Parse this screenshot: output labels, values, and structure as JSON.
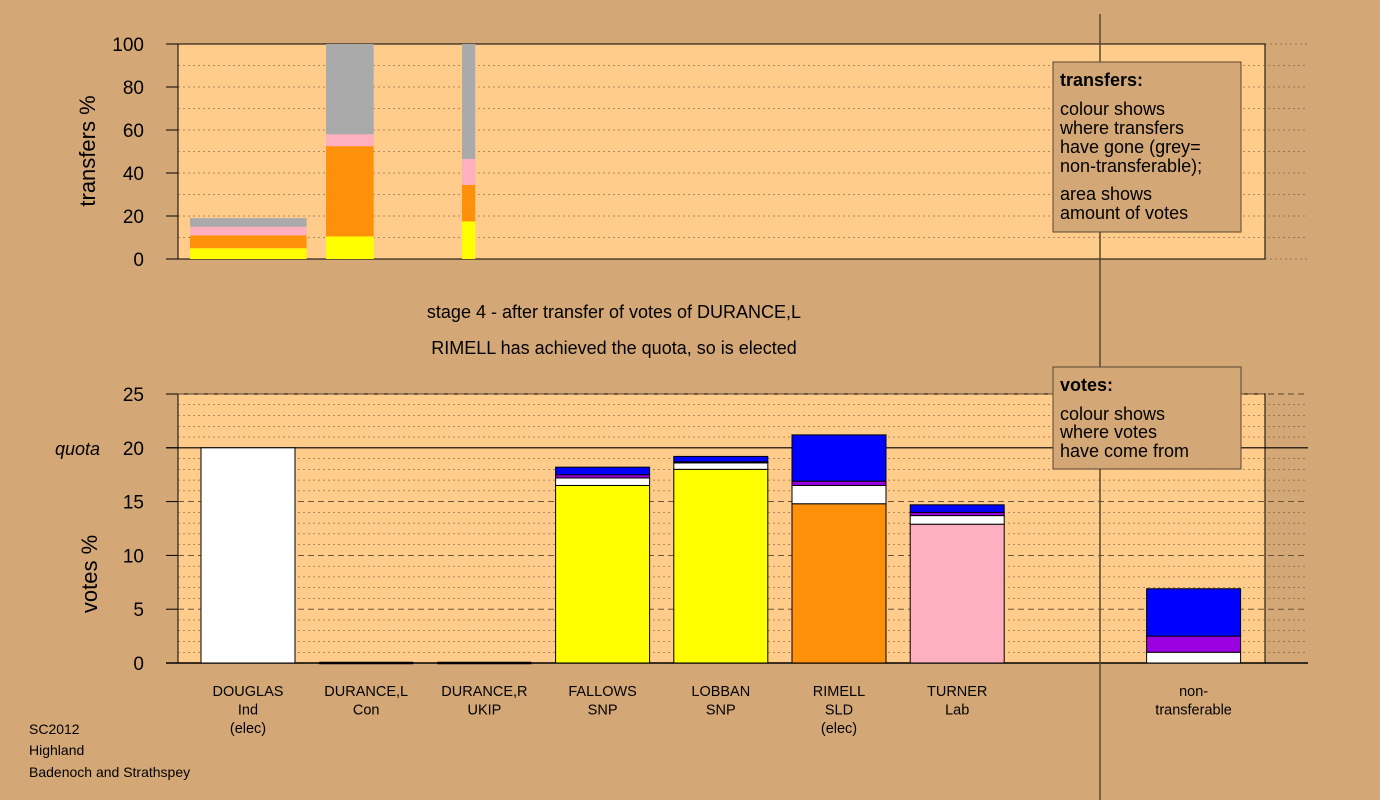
{
  "colors": {
    "background": "#d4a876",
    "plot_bg": "#ffcc8c",
    "white": "#ffffff",
    "yellow": "#ffff00",
    "orange": "#ff9009",
    "pink": "#ffb0c0",
    "grey": "#aaaaaa",
    "purple": "#9a00e0",
    "blue": "#0000ff"
  },
  "titles": {
    "stage": "stage 4 - after transfer of votes of DURANCE,L",
    "elected": "RIMELL has achieved the quota, so is elected"
  },
  "legend_transfers": {
    "title": "transfers:",
    "lines1": [
      "colour shows",
      "where transfers",
      "have gone (grey=",
      "non-transferable);"
    ],
    "lines2": [
      "area shows",
      "amount of votes"
    ]
  },
  "legend_votes": {
    "title": "votes:",
    "lines": [
      "colour shows",
      "where votes",
      "have come from"
    ]
  },
  "footer": [
    "SC2012",
    "Highland",
    "Badenoch and Strathspey"
  ],
  "chart_data": [
    {
      "type": "bar",
      "ylabel": "transfers %",
      "ylim": [
        0,
        100
      ],
      "yticks": [
        0,
        20,
        40,
        60,
        80,
        100
      ],
      "grid": true,
      "bars": [
        {
          "name": "DOUGLAS transfer",
          "share_of_width": 0.22,
          "segments": [
            {
              "color": "yellow",
              "value": 5
            },
            {
              "color": "orange",
              "value": 6
            },
            {
              "color": "pink",
              "value": 4
            },
            {
              "color": "grey",
              "value": 4
            }
          ]
        },
        {
          "name": "DURANCE,L transfer",
          "share_of_width": 0.09,
          "segments": [
            {
              "color": "yellow",
              "value": 10.5
            },
            {
              "color": "orange",
              "value": 42
            },
            {
              "color": "pink",
              "value": 5.5
            },
            {
              "color": "grey",
              "value": 42
            }
          ]
        },
        {
          "name": "DURANCE,R transfer",
          "share_of_width": 0.025,
          "segments": [
            {
              "color": "yellow",
              "value": 17.5
            },
            {
              "color": "orange",
              "value": 17
            },
            {
              "color": "pink",
              "value": 12
            },
            {
              "color": "grey",
              "value": 53.5
            }
          ]
        }
      ]
    },
    {
      "type": "bar",
      "ylabel": "votes %",
      "ylim": [
        0,
        25
      ],
      "yticks": [
        0,
        5,
        10,
        15,
        20,
        25
      ],
      "quota": 20,
      "quota_label": "quota",
      "grid": true,
      "categories": [
        {
          "name": "DOUGLAS",
          "party": "Ind",
          "note": "(elec)",
          "segments": [
            {
              "color": "white",
              "value": 20
            }
          ]
        },
        {
          "name": "DURANCE,L",
          "party": "Con",
          "note": "",
          "segments": []
        },
        {
          "name": "DURANCE,R",
          "party": "UKIP",
          "note": "",
          "segments": []
        },
        {
          "name": "FALLOWS",
          "party": "SNP",
          "note": "",
          "segments": [
            {
              "color": "yellow",
              "value": 16.5
            },
            {
              "color": "white",
              "value": 0.7
            },
            {
              "color": "purple",
              "value": 0.3
            },
            {
              "color": "blue",
              "value": 0.7
            }
          ]
        },
        {
          "name": "LOBBAN",
          "party": "SNP",
          "note": "",
          "segments": [
            {
              "color": "yellow",
              "value": 18
            },
            {
              "color": "white",
              "value": 0.6
            },
            {
              "color": "purple",
              "value": 0.1
            },
            {
              "color": "blue",
              "value": 0.5
            }
          ]
        },
        {
          "name": "RIMELL",
          "party": "SLD",
          "note": "(elec)",
          "segments": [
            {
              "color": "orange",
              "value": 14.8
            },
            {
              "color": "white",
              "value": 1.7
            },
            {
              "color": "purple",
              "value": 0.4
            },
            {
              "color": "blue",
              "value": 4.3
            }
          ]
        },
        {
          "name": "TURNER",
          "party": "Lab",
          "note": "",
          "segments": [
            {
              "color": "pink",
              "value": 12.9
            },
            {
              "color": "white",
              "value": 0.8
            },
            {
              "color": "purple",
              "value": 0.3
            },
            {
              "color": "blue",
              "value": 0.7
            }
          ]
        },
        {
          "name": "",
          "party": "",
          "note": "",
          "segments": []
        },
        {
          "name": "non-",
          "party": "transferable",
          "note": "",
          "segments": [
            {
              "color": "white",
              "value": 1
            },
            {
              "color": "purple",
              "value": 1.5
            },
            {
              "color": "blue",
              "value": 4.4
            }
          ]
        }
      ]
    }
  ]
}
